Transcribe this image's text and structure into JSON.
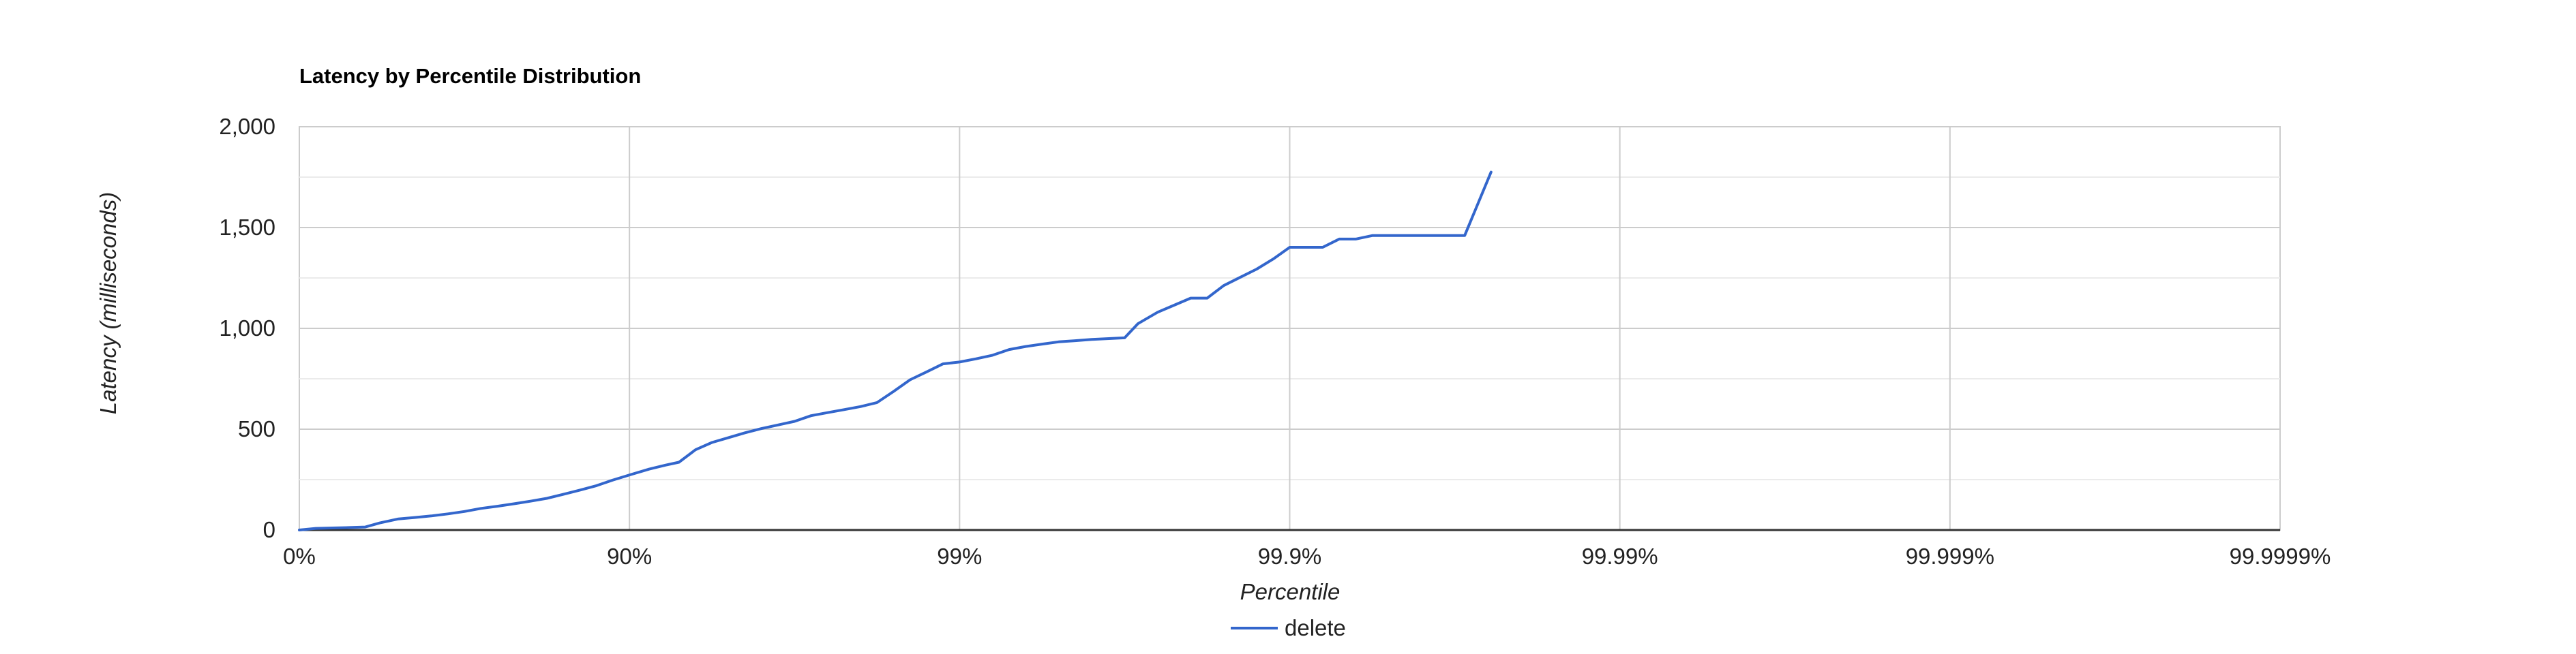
{
  "chart_data": {
    "type": "line",
    "title": "Latency by Percentile Distribution",
    "xlabel": "Percentile",
    "ylabel": "Latency (milliseconds)",
    "x_scale": "log-complement",
    "x_ticks": [
      "0%",
      "90%",
      "99%",
      "99.9%",
      "99.99%",
      "99.999%",
      "99.9999%"
    ],
    "y_ticks": [
      "0",
      "500",
      "1,000",
      "1,500",
      "2,000"
    ],
    "ylim": [
      0,
      2000
    ],
    "grid": true,
    "legend": "bottom",
    "series": [
      {
        "name": "delete",
        "color": "#3366cc",
        "points": [
          [
            0,
            0
          ],
          [
            25,
            8
          ],
          [
            50,
            10
          ],
          [
            75,
            12
          ],
          [
            100,
            15
          ],
          [
            122,
            35
          ],
          [
            150,
            55
          ],
          [
            175,
            62
          ],
          [
            200,
            70
          ],
          [
            225,
            80
          ],
          [
            250,
            92
          ],
          [
            275,
            107
          ],
          [
            300,
            118
          ],
          [
            325,
            130
          ],
          [
            350,
            143
          ],
          [
            375,
            157
          ],
          [
            400,
            177
          ],
          [
            425,
            198
          ],
          [
            450,
            220
          ],
          [
            475,
            248
          ],
          [
            502,
            275
          ],
          [
            530,
            302
          ],
          [
            555,
            322
          ],
          [
            575,
            336
          ],
          [
            600,
            398
          ],
          [
            625,
            434
          ],
          [
            650,
            458
          ],
          [
            675,
            482
          ],
          [
            700,
            503
          ],
          [
            725,
            521
          ],
          [
            750,
            539
          ],
          [
            775,
            567
          ],
          [
            800,
            582
          ],
          [
            825,
            597
          ],
          [
            850,
            612
          ],
          [
            875,
            632
          ],
          [
            900,
            687
          ],
          [
            925,
            745
          ],
          [
            950,
            784
          ],
          [
            975,
            824
          ],
          [
            1000,
            833
          ],
          [
            1025,
            849
          ],
          [
            1050,
            867
          ],
          [
            1075,
            895
          ],
          [
            1100,
            910
          ],
          [
            1125,
            922
          ],
          [
            1150,
            933
          ],
          [
            1175,
            939
          ],
          [
            1200,
            945
          ],
          [
            1250,
            953
          ],
          [
            1270,
            1023
          ],
          [
            1300,
            1080
          ],
          [
            1325,
            1115
          ],
          [
            1350,
            1150
          ],
          [
            1375,
            1150
          ],
          [
            1400,
            1212
          ],
          [
            1425,
            1253
          ],
          [
            1450,
            1294
          ],
          [
            1475,
            1344
          ],
          [
            1500,
            1402
          ],
          [
            1525,
            1402
          ],
          [
            1550,
            1402
          ],
          [
            1575,
            1443
          ],
          [
            1600,
            1443
          ],
          [
            1625,
            1460
          ],
          [
            1650,
            1460
          ],
          [
            1675,
            1460
          ],
          [
            1700,
            1460
          ],
          [
            1725,
            1460
          ],
          [
            1765,
            1460
          ],
          [
            1805,
            1775
          ]
        ]
      }
    ]
  }
}
